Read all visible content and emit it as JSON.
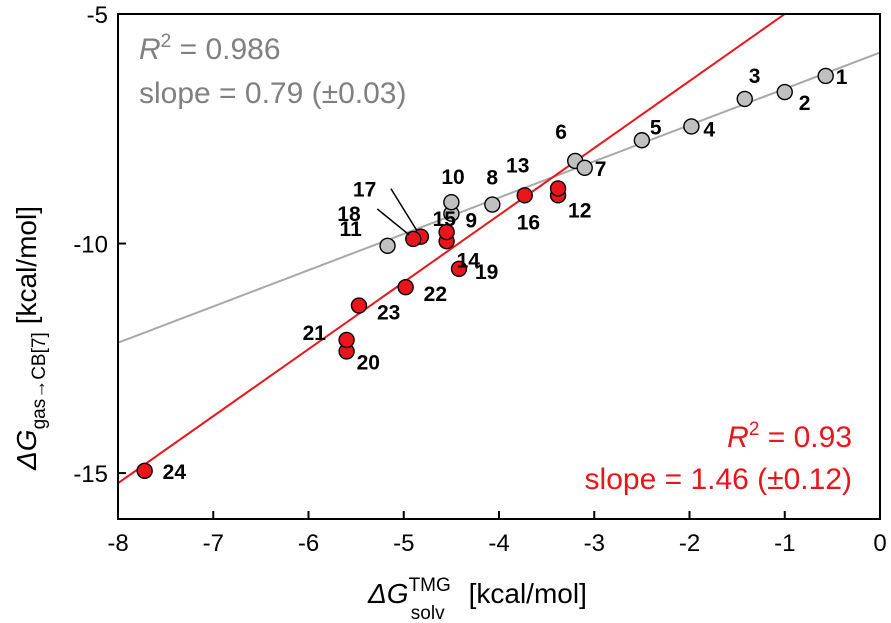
{
  "chart_data": {
    "type": "scatter",
    "xlabel": {
      "prefix": "ΔG",
      "sup": "TMG",
      "sub": "solv",
      "units": "[kcal/mol]"
    },
    "ylabel": {
      "prefix": "ΔG",
      "sub": "gas→CB[7]",
      "units": "[kcal/mol]"
    },
    "xlim": [
      -8,
      0
    ],
    "ylim": [
      -16,
      -5
    ],
    "xticks": [
      -8,
      -7,
      -6,
      -5,
      -4,
      -3,
      -2,
      -1,
      0
    ],
    "yticks": [
      -15,
      -10,
      -5
    ],
    "series": [
      {
        "name": "gray",
        "color": "#c0c0c0",
        "line_color": "#a8a8a8",
        "fit": {
          "slope": 0.79,
          "intercept": -5.84
        },
        "annotation": {
          "r2_label": "R",
          "r2_sup": "2",
          "r2_value": " = 0.986",
          "slope_text": "slope = 0.79 (±0.03)"
        },
        "points": [
          {
            "id": "1",
            "x": -0.57,
            "y": -6.35
          },
          {
            "id": "2",
            "x": -1.0,
            "y": -6.7
          },
          {
            "id": "3",
            "x": -1.42,
            "y": -6.85
          },
          {
            "id": "4",
            "x": -1.98,
            "y": -7.45
          },
          {
            "id": "5",
            "x": -2.5,
            "y": -7.75
          },
          {
            "id": "6",
            "x": -3.2,
            "y": -8.2
          },
          {
            "id": "7",
            "x": -3.1,
            "y": -8.35
          },
          {
            "id": "8",
            "x": -4.07,
            "y": -9.15
          },
          {
            "id": "9",
            "x": -4.5,
            "y": -9.35
          },
          {
            "id": "10",
            "x": -4.5,
            "y": -9.1
          },
          {
            "id": "11",
            "x": -5.17,
            "y": -10.05
          }
        ]
      },
      {
        "name": "red",
        "color": "#e8161b",
        "line_color": "#e8161b",
        "fit": {
          "slope": 1.46,
          "intercept": -3.54
        },
        "annotation": {
          "r2_label": "R",
          "r2_sup": "2",
          "r2_value": " = 0.93",
          "slope_text": "slope = 1.46 (±0.12)"
        },
        "points": [
          {
            "id": "12",
            "x": -3.38,
            "y": -8.95
          },
          {
            "id": "13",
            "x": -3.38,
            "y": -8.8
          },
          {
            "id": "14",
            "x": -4.55,
            "y": -9.95
          },
          {
            "id": "15",
            "x": -4.55,
            "y": -9.75
          },
          {
            "id": "16",
            "x": -3.73,
            "y": -8.95
          },
          {
            "id": "17",
            "x": -4.82,
            "y": -9.85
          },
          {
            "id": "18",
            "x": -4.9,
            "y": -9.9
          },
          {
            "id": "19",
            "x": -4.42,
            "y": -10.55
          },
          {
            "id": "20",
            "x": -5.6,
            "y": -12.35
          },
          {
            "id": "21",
            "x": -5.6,
            "y": -12.1
          },
          {
            "id": "22",
            "x": -4.98,
            "y": -10.95
          },
          {
            "id": "23",
            "x": -5.47,
            "y": -11.35
          },
          {
            "id": "24",
            "x": -7.72,
            "y": -14.95
          }
        ]
      }
    ]
  }
}
